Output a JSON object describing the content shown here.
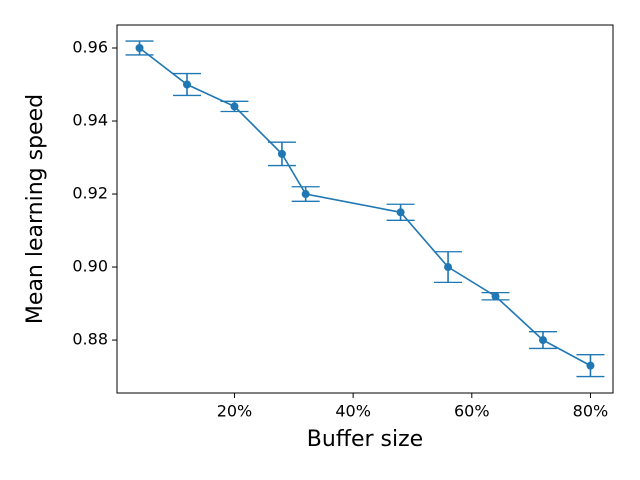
{
  "chart_data": {
    "type": "errorbar",
    "x_label": "Buffer size",
    "y_label": "Mean learning speed",
    "x": [
      4,
      12,
      20,
      28,
      32,
      48,
      56,
      64,
      72,
      80
    ],
    "series": [
      {
        "color": "#1f77b4",
        "values": [
          0.96,
          0.95,
          0.944,
          0.931,
          0.92,
          0.915,
          0.9,
          0.892,
          0.88,
          0.873
        ],
        "errors": [
          0.0019,
          0.003,
          0.0014,
          0.0032,
          0.002,
          0.0022,
          0.0042,
          0.001,
          0.0023,
          0.003
        ]
      }
    ],
    "xlim": [
      0.2,
      83.8
    ],
    "ylim": [
      0.8655,
      0.9663
    ],
    "xticks": [
      {
        "value": 20,
        "label": "20%"
      },
      {
        "value": 40,
        "label": "40%"
      },
      {
        "value": 60,
        "label": "60%"
      },
      {
        "value": 80,
        "label": "80%"
      }
    ],
    "yticks": [
      {
        "value": 0.88,
        "label": "0.88"
      },
      {
        "value": 0.9,
        "label": "0.90"
      },
      {
        "value": 0.92,
        "label": "0.92"
      },
      {
        "value": 0.94,
        "label": "0.94"
      },
      {
        "value": 0.96,
        "label": "0.96"
      }
    ]
  }
}
